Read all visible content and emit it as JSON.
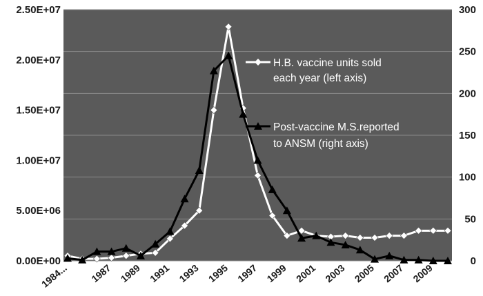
{
  "chart_data": {
    "type": "line",
    "title": "",
    "xlabel": "",
    "ylabel": "",
    "y2label": "",
    "x": [
      "1984...",
      "1985",
      "1986",
      "1987",
      "1988",
      "1989",
      "1990",
      "1991",
      "1992",
      "1993",
      "1994",
      "1995",
      "1996",
      "1997",
      "1998",
      "1999",
      "2000",
      "2001",
      "2002",
      "2003",
      "2004",
      "2005",
      "2006",
      "2007",
      "2008",
      "2009",
      "2010"
    ],
    "x_tick_labels": [
      "1984...",
      "1987",
      "1989",
      "1991",
      "1993",
      "1995",
      "1997",
      "1999",
      "2001",
      "2003",
      "2005",
      "2007",
      "2009"
    ],
    "left_axis": {
      "ylim": [
        0,
        25000000
      ],
      "tick_labels": [
        "0.00E+00",
        "5.00E+06",
        "1.00E+07",
        "1.50E+07",
        "2.00E+07",
        "2.50E+07"
      ]
    },
    "right_axis": {
      "ylim": [
        0,
        300
      ],
      "tick_labels": [
        "0",
        "50",
        "100",
        "150",
        "200",
        "250",
        "300"
      ]
    },
    "grid": true,
    "plot_background": "#5a5a5a",
    "legend_position": "upper-right inside plot",
    "series": [
      {
        "name": "H.B. vaccine units sold each year (left axis)",
        "legend_lines": [
          "H.B. vaccine units sold",
          "each year (left axis)"
        ],
        "axis": "left",
        "color": "#ffffff",
        "marker": "diamond",
        "values": [
          500000,
          200000,
          200000,
          300000,
          500000,
          700000,
          800000,
          2200000,
          3500000,
          5000000,
          15000000,
          23300000,
          15200000,
          8500000,
          4500000,
          2500000,
          3000000,
          2500000,
          2400000,
          2500000,
          2300000,
          2300000,
          2500000,
          2500000,
          3000000,
          3000000,
          3000000
        ]
      },
      {
        "name": "Post-vaccine M.S.reported to ANSM (right axis)",
        "legend_lines": [
          "Post-vaccine M.S.reported",
          "to ANSM (right axis)"
        ],
        "axis": "right",
        "color": "#000000",
        "marker": "triangle",
        "values": [
          3,
          1,
          11,
          11,
          15,
          6,
          20,
          35,
          74,
          108,
          227,
          245,
          175,
          120,
          85,
          60,
          27,
          30,
          22,
          19,
          13,
          2,
          6,
          1,
          1,
          0,
          0
        ]
      }
    ]
  }
}
